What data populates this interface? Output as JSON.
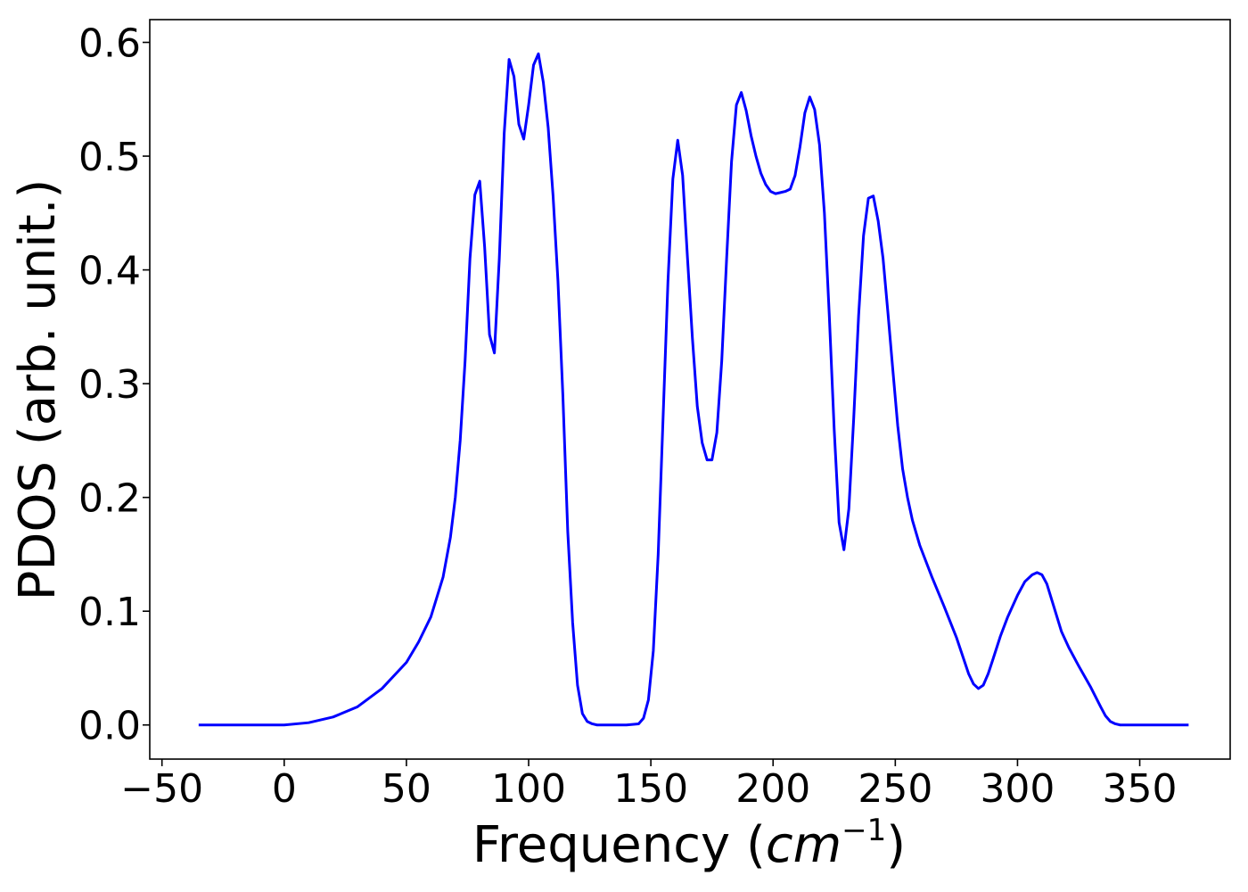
{
  "chart_data": {
    "type": "line",
    "title": "",
    "xlabel": "Frequency (cm⁻¹)",
    "xlabel_parts": {
      "prefix": "Frequency (",
      "unit": "cm",
      "exponent": "−1",
      "suffix": ")"
    },
    "ylabel": "PDOS (arb. unit.)",
    "xlim": [
      -55,
      387
    ],
    "ylim": [
      -0.03,
      0.62
    ],
    "xticks": [
      -50,
      0,
      50,
      100,
      150,
      200,
      250,
      300,
      350
    ],
    "xtick_labels": [
      "−50",
      "0",
      "50",
      "100",
      "150",
      "200",
      "250",
      "300",
      "350"
    ],
    "yticks": [
      0.0,
      0.1,
      0.2,
      0.3,
      0.4,
      0.5,
      0.6
    ],
    "ytick_labels": [
      "0.0",
      "0.1",
      "0.2",
      "0.3",
      "0.4",
      "0.5",
      "0.6"
    ],
    "grid": false,
    "legend": false,
    "colors": {
      "line": "#0000ff",
      "frame": "#000000",
      "background": "#ffffff"
    },
    "series": [
      {
        "x": [
          -35,
          0,
          10,
          20,
          30,
          40,
          50,
          55,
          60,
          65,
          68,
          70,
          72,
          74,
          76,
          78,
          80,
          82,
          84,
          86,
          88,
          90,
          92,
          94,
          96,
          98,
          100,
          102,
          104,
          106,
          108,
          110,
          112,
          114,
          116,
          118,
          120,
          122,
          124,
          126,
          128,
          130,
          140,
          145,
          147,
          149,
          151,
          153,
          155,
          157,
          159,
          161,
          163,
          165,
          167,
          169,
          171,
          173,
          175,
          177,
          179,
          181,
          183,
          185,
          187,
          189,
          191,
          193,
          195,
          197,
          199,
          201,
          203,
          205,
          207,
          209,
          211,
          213,
          215,
          217,
          219,
          221,
          223,
          225,
          227,
          229,
          231,
          233,
          235,
          237,
          239,
          241,
          243,
          245,
          247,
          249,
          251,
          253,
          255,
          257,
          260,
          265,
          270,
          275,
          280,
          282,
          284,
          286,
          288,
          290,
          293,
          296,
          300,
          303,
          306,
          308,
          310,
          312,
          315,
          318,
          321,
          325,
          330,
          334,
          336,
          338,
          340,
          342,
          345,
          350,
          370
        ],
        "y": [
          0.0,
          0.0,
          0.002,
          0.007,
          0.016,
          0.032,
          0.055,
          0.073,
          0.095,
          0.13,
          0.165,
          0.2,
          0.25,
          0.32,
          0.41,
          0.466,
          0.478,
          0.42,
          0.343,
          0.327,
          0.41,
          0.52,
          0.585,
          0.57,
          0.528,
          0.515,
          0.545,
          0.58,
          0.59,
          0.565,
          0.525,
          0.465,
          0.39,
          0.29,
          0.17,
          0.09,
          0.035,
          0.01,
          0.003,
          0.001,
          0.0,
          0.0,
          0.0,
          0.001,
          0.006,
          0.022,
          0.065,
          0.15,
          0.27,
          0.39,
          0.48,
          0.514,
          0.483,
          0.41,
          0.34,
          0.28,
          0.248,
          0.233,
          0.233,
          0.257,
          0.32,
          0.41,
          0.495,
          0.545,
          0.556,
          0.54,
          0.518,
          0.5,
          0.485,
          0.475,
          0.469,
          0.467,
          0.468,
          0.469,
          0.471,
          0.483,
          0.508,
          0.538,
          0.552,
          0.541,
          0.51,
          0.45,
          0.36,
          0.26,
          0.178,
          0.154,
          0.19,
          0.27,
          0.36,
          0.43,
          0.463,
          0.465,
          0.443,
          0.41,
          0.362,
          0.312,
          0.263,
          0.225,
          0.2,
          0.18,
          0.158,
          0.13,
          0.104,
          0.077,
          0.045,
          0.036,
          0.032,
          0.035,
          0.045,
          0.058,
          0.078,
          0.095,
          0.114,
          0.126,
          0.132,
          0.134,
          0.132,
          0.124,
          0.103,
          0.082,
          0.068,
          0.052,
          0.033,
          0.016,
          0.008,
          0.003,
          0.001,
          0.0,
          0.0,
          0.0,
          0.0
        ]
      }
    ]
  }
}
